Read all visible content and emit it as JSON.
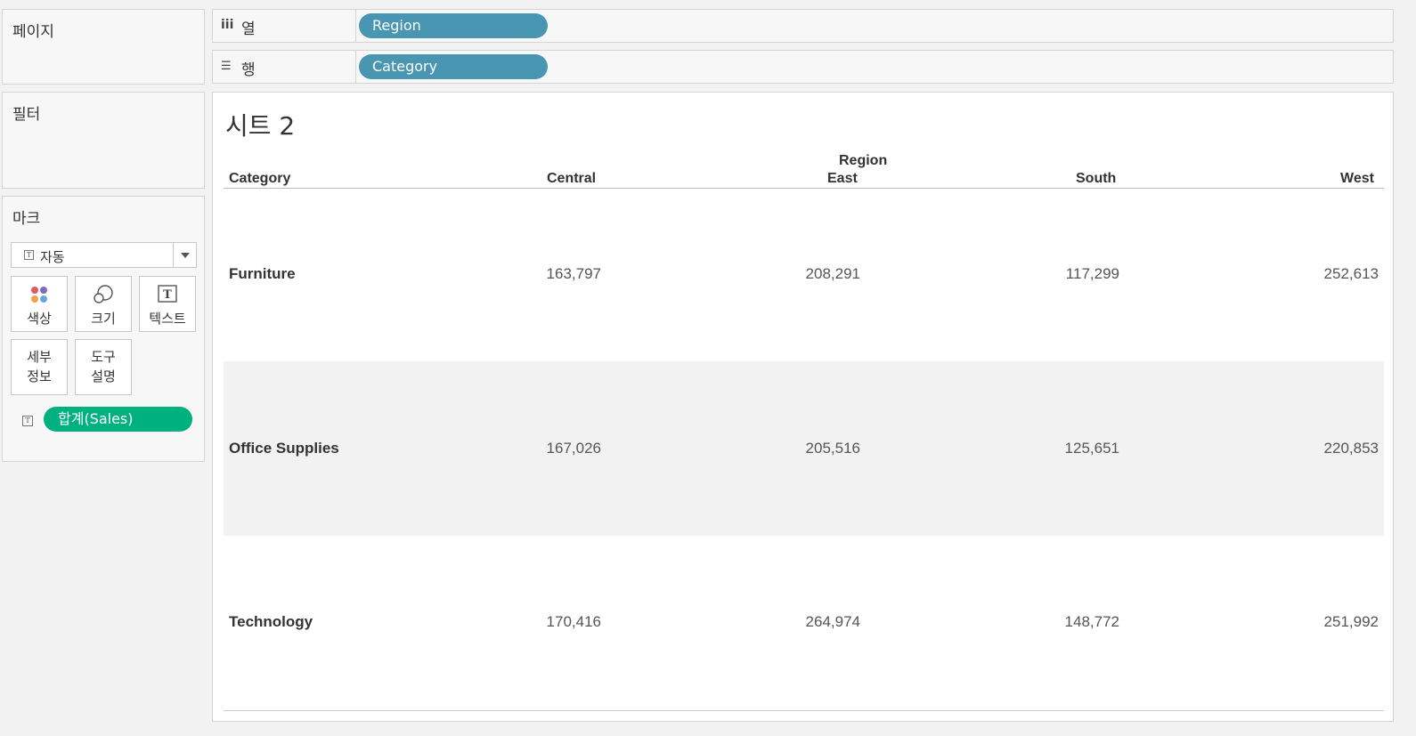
{
  "pages_card": {
    "title": "페이지"
  },
  "filters_card": {
    "title": "필터"
  },
  "marks_card": {
    "title": "마크",
    "mark_type": "자동",
    "mark_type_icon": "text-mark-icon",
    "buttons": [
      {
        "label": "색상",
        "icon": "color-dots-icon"
      },
      {
        "label": "크기",
        "icon": "size-circles-icon"
      },
      {
        "label": "텍스트",
        "icon": "text-box-icon"
      },
      {
        "label": "세부\n정보"
      },
      {
        "label": "도구\n설명"
      }
    ],
    "fields": [
      {
        "label": "합계(Sales)",
        "icon": "text-mark-icon",
        "color": "#00b180"
      }
    ]
  },
  "shelves": {
    "columns": {
      "icon": "iii",
      "label": "열",
      "pill": "Region",
      "pill_color": "#4996b2"
    },
    "rows": {
      "icon": "☰",
      "label": "행",
      "pill": "Category",
      "pill_color": "#4996b2"
    }
  },
  "view": {
    "title": "시트 2",
    "row_header_title": "Category",
    "column_group_title": "Region",
    "columns": [
      "Central",
      "East",
      "South",
      "West"
    ],
    "rows": [
      {
        "category": "Furniture",
        "values": [
          "163,797",
          "208,291",
          "117,299",
          "252,613"
        ]
      },
      {
        "category": "Office Supplies",
        "values": [
          "167,026",
          "205,516",
          "125,651",
          "220,853"
        ]
      },
      {
        "category": "Technology",
        "values": [
          "170,416",
          "264,974",
          "148,772",
          "251,992"
        ]
      }
    ]
  }
}
